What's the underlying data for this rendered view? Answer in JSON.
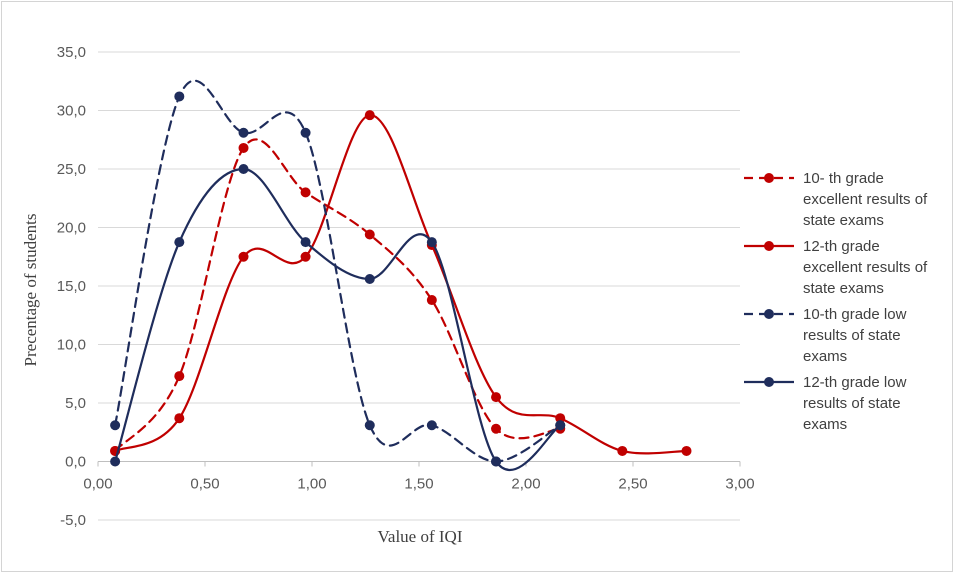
{
  "chart_data": {
    "type": "line",
    "xlabel": "Value of IQI",
    "ylabel": "Precentage of students",
    "xlim": [
      0,
      3
    ],
    "ylim": [
      -5,
      35
    ],
    "xticks": [
      "0,00",
      "0,50",
      "1,00",
      "1,50",
      "2,00",
      "2,50",
      "3,00"
    ],
    "yticks": [
      "-5,0",
      "0,0",
      "5,0",
      "10,0",
      "15,0",
      "20,0",
      "25,0",
      "30,0",
      "35,0"
    ],
    "grid": "horizontal",
    "legend_position": "right",
    "series": [
      {
        "name": "10- th grade excellent results of state exams",
        "legend_lines": [
          "10- th grade",
          "excellent results of",
          "state exams"
        ],
        "color": "#c00000",
        "dashed": true,
        "x": [
          0.08,
          0.38,
          0.68,
          0.97,
          1.27,
          1.56,
          1.86,
          2.16
        ],
        "y": [
          0.9,
          7.3,
          26.8,
          23.0,
          19.4,
          13.8,
          2.8,
          2.8
        ]
      },
      {
        "name": "12-th grade excellent results of state exams",
        "legend_lines": [
          "12-th grade",
          "excellent results of",
          "state exams"
        ],
        "color": "#c00000",
        "dashed": false,
        "x": [
          0.08,
          0.38,
          0.68,
          0.97,
          1.27,
          1.56,
          1.86,
          2.16,
          2.45,
          2.75
        ],
        "y": [
          0.9,
          3.7,
          17.5,
          17.5,
          29.6,
          18.5,
          5.5,
          3.7,
          0.9,
          0.9
        ]
      },
      {
        "name": "10-th grade low results of state exams",
        "legend_lines": [
          "10-th grade low",
          "results of state",
          "exams"
        ],
        "color": "#1f2d5c",
        "dashed": true,
        "x": [
          0.08,
          0.38,
          0.68,
          0.97,
          1.27,
          1.56,
          1.86,
          2.16
        ],
        "y": [
          3.1,
          31.2,
          28.1,
          28.1,
          3.1,
          3.1,
          0.0,
          3.1
        ]
      },
      {
        "name": "12-th grade low results of state exams",
        "legend_lines": [
          "12-th grade low",
          "results of state",
          "exams"
        ],
        "color": "#1f2d5c",
        "dashed": false,
        "x": [
          0.08,
          0.38,
          0.68,
          0.97,
          1.27,
          1.56,
          1.86,
          2.16
        ],
        "y": [
          0.0,
          18.75,
          25.0,
          18.75,
          15.6,
          18.75,
          0.0,
          3.1
        ]
      }
    ]
  }
}
